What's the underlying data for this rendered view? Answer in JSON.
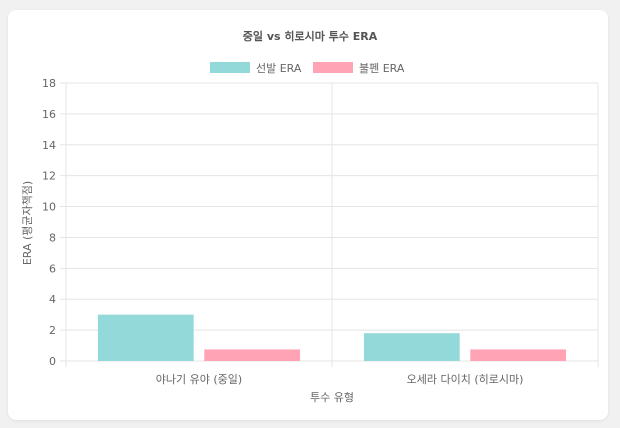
{
  "chart_data": {
    "type": "bar",
    "title": "중일 vs 히로시마 투수 ERA",
    "xlabel": "투수 유형",
    "ylabel": "ERA (평균자책점)",
    "categories": [
      "야나기 유야 (중일)",
      "오세라 다이치 (히로시마)"
    ],
    "series": [
      {
        "name": "선발 ERA",
        "values": [
          3.0,
          1.8
        ],
        "color": "#94d9d9"
      },
      {
        "name": "불펜 ERA",
        "values": [
          0.75,
          0.75
        ],
        "color": "#ffa3b5"
      }
    ],
    "ylim": [
      0,
      18
    ],
    "yticks": [
      0,
      2,
      4,
      6,
      8,
      10,
      12,
      14,
      16,
      18
    ],
    "grid": true,
    "legend_position": "top"
  }
}
